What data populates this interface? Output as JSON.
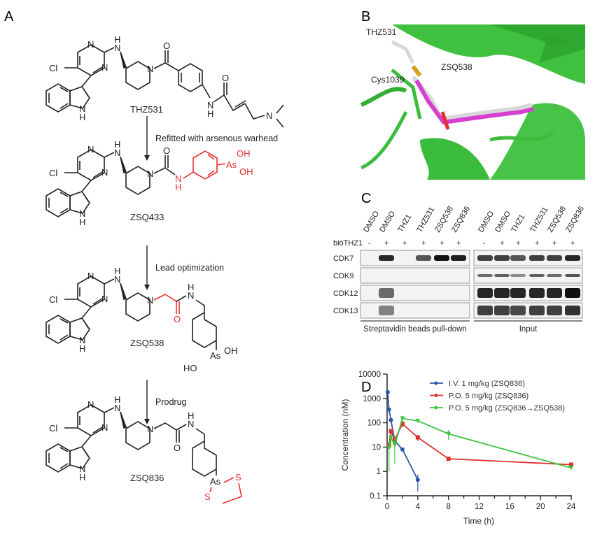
{
  "panels": {
    "a": "A",
    "b": "B",
    "c": "C",
    "d": "D"
  },
  "panel_a": {
    "compounds": [
      "THZ531",
      "ZSQ433",
      "ZSQ538",
      "ZSQ836"
    ],
    "steps": [
      "Refitted with arsenous warhead",
      "Lead optimization",
      "Prodrug"
    ],
    "atoms": {
      "cl": "Cl",
      "n": "N",
      "h": "H",
      "o": "O",
      "as": "As",
      "oh": "OH",
      "ho": "HO",
      "s": "S"
    }
  },
  "panel_b": {
    "labels": {
      "thz531": "THZ531",
      "cys": "Cys1039",
      "zsq538": "ZSQ538",
      "cdk12": "CDK12"
    },
    "colors": {
      "protein": "#3fc03f",
      "zsq538": "#d63fd0",
      "thz531": "#d8d8d8"
    }
  },
  "panel_c": {
    "lanes": [
      "DMSO",
      "DMSO",
      "THZ1",
      "THZ531",
      "ZSQ538",
      "ZSQ836"
    ],
    "biothz1_label": "bioTHZ1",
    "biothz1": [
      "-",
      "+",
      "+",
      "+",
      "+",
      "+"
    ],
    "rows": [
      "CDK7",
      "CDK9",
      "CDK12",
      "CDK13"
    ],
    "groups": [
      "Streptavidin beads pull-down",
      "Input"
    ],
    "pulldown_bands": [
      [
        0,
        0.9,
        0,
        0.7,
        1,
        0.95
      ],
      [
        0,
        0,
        0,
        0,
        0,
        0
      ],
      [
        0,
        0.6,
        0,
        0,
        0,
        0
      ],
      [
        0,
        0.5,
        0,
        0,
        0,
        0
      ]
    ],
    "input_bands": [
      [
        0.8,
        0.8,
        0.7,
        0.8,
        0.8,
        0.9
      ],
      [
        0.6,
        0.65,
        0.45,
        0.65,
        0.6,
        0.7
      ],
      [
        0.9,
        0.9,
        0.9,
        0.9,
        0.9,
        1
      ],
      [
        0.8,
        0.8,
        0.75,
        0.8,
        0.8,
        0.85
      ]
    ]
  },
  "chart_data": {
    "type": "line",
    "xlabel": "Time (h)",
    "ylabel": "Concentration (nM)",
    "xlim": [
      0,
      24
    ],
    "ylim": [
      0.1,
      10000
    ],
    "yscale": "log",
    "xticks": [
      0,
      4,
      8,
      12,
      16,
      20,
      24
    ],
    "yticks": [
      0.1,
      1,
      10,
      100,
      1000,
      10000
    ],
    "ytick_labels": [
      "0.1",
      "1",
      "10",
      "100",
      "1000",
      "10000"
    ],
    "legend_position": "top-right",
    "series": [
      {
        "name": "I.V. 1 mg/kg (ZSQ836)",
        "color": "#2a56a8",
        "marker": "circle",
        "x": [
          0.083,
          0.25,
          0.5,
          1,
          2,
          4
        ],
        "y": [
          1800,
          350,
          130,
          18,
          8,
          0.45
        ],
        "err": [
          0,
          60,
          15,
          4,
          1,
          0.3
        ]
      },
      {
        "name": "P.O. 5 mg/kg (ZSQ836)",
        "color": "#e03030",
        "marker": "square",
        "x": [
          0.25,
          0.5,
          1,
          2,
          4,
          8,
          24
        ],
        "y": [
          12,
          45,
          20,
          90,
          25,
          3.3,
          1.9
        ],
        "err": [
          3,
          12,
          5,
          25,
          7,
          0.5,
          0.4
        ]
      },
      {
        "name": "P.O. 5 mg/kg (ZSQ836→ZSQ538)",
        "color": "#3cc43c",
        "marker": "triangle",
        "x": [
          0.25,
          0.5,
          1,
          2,
          4,
          8,
          24
        ],
        "y": [
          9,
          25,
          12,
          150,
          120,
          35,
          1.4
        ],
        "err": [
          8,
          10,
          10,
          40,
          20,
          15,
          0.2
        ]
      }
    ]
  }
}
